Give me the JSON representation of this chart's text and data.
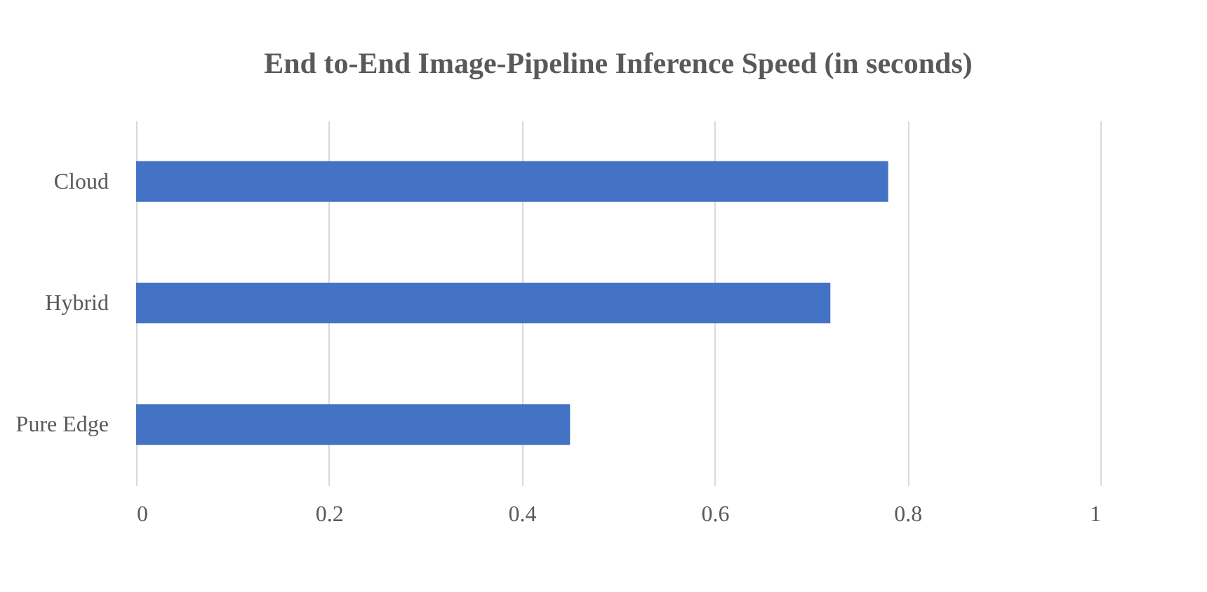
{
  "chart_data": {
    "type": "bar",
    "orientation": "horizontal",
    "title": "End to-End Image-Pipeline Inference Speed (in seconds)",
    "categories": [
      "Cloud",
      "Hybrid",
      "Pure Edge"
    ],
    "values": [
      0.78,
      0.72,
      0.45
    ],
    "color": "#4472c4",
    "xlim": [
      0,
      1
    ],
    "xticks": [
      0,
      0.2,
      0.4,
      0.6,
      0.8,
      1
    ],
    "grid": "x"
  }
}
